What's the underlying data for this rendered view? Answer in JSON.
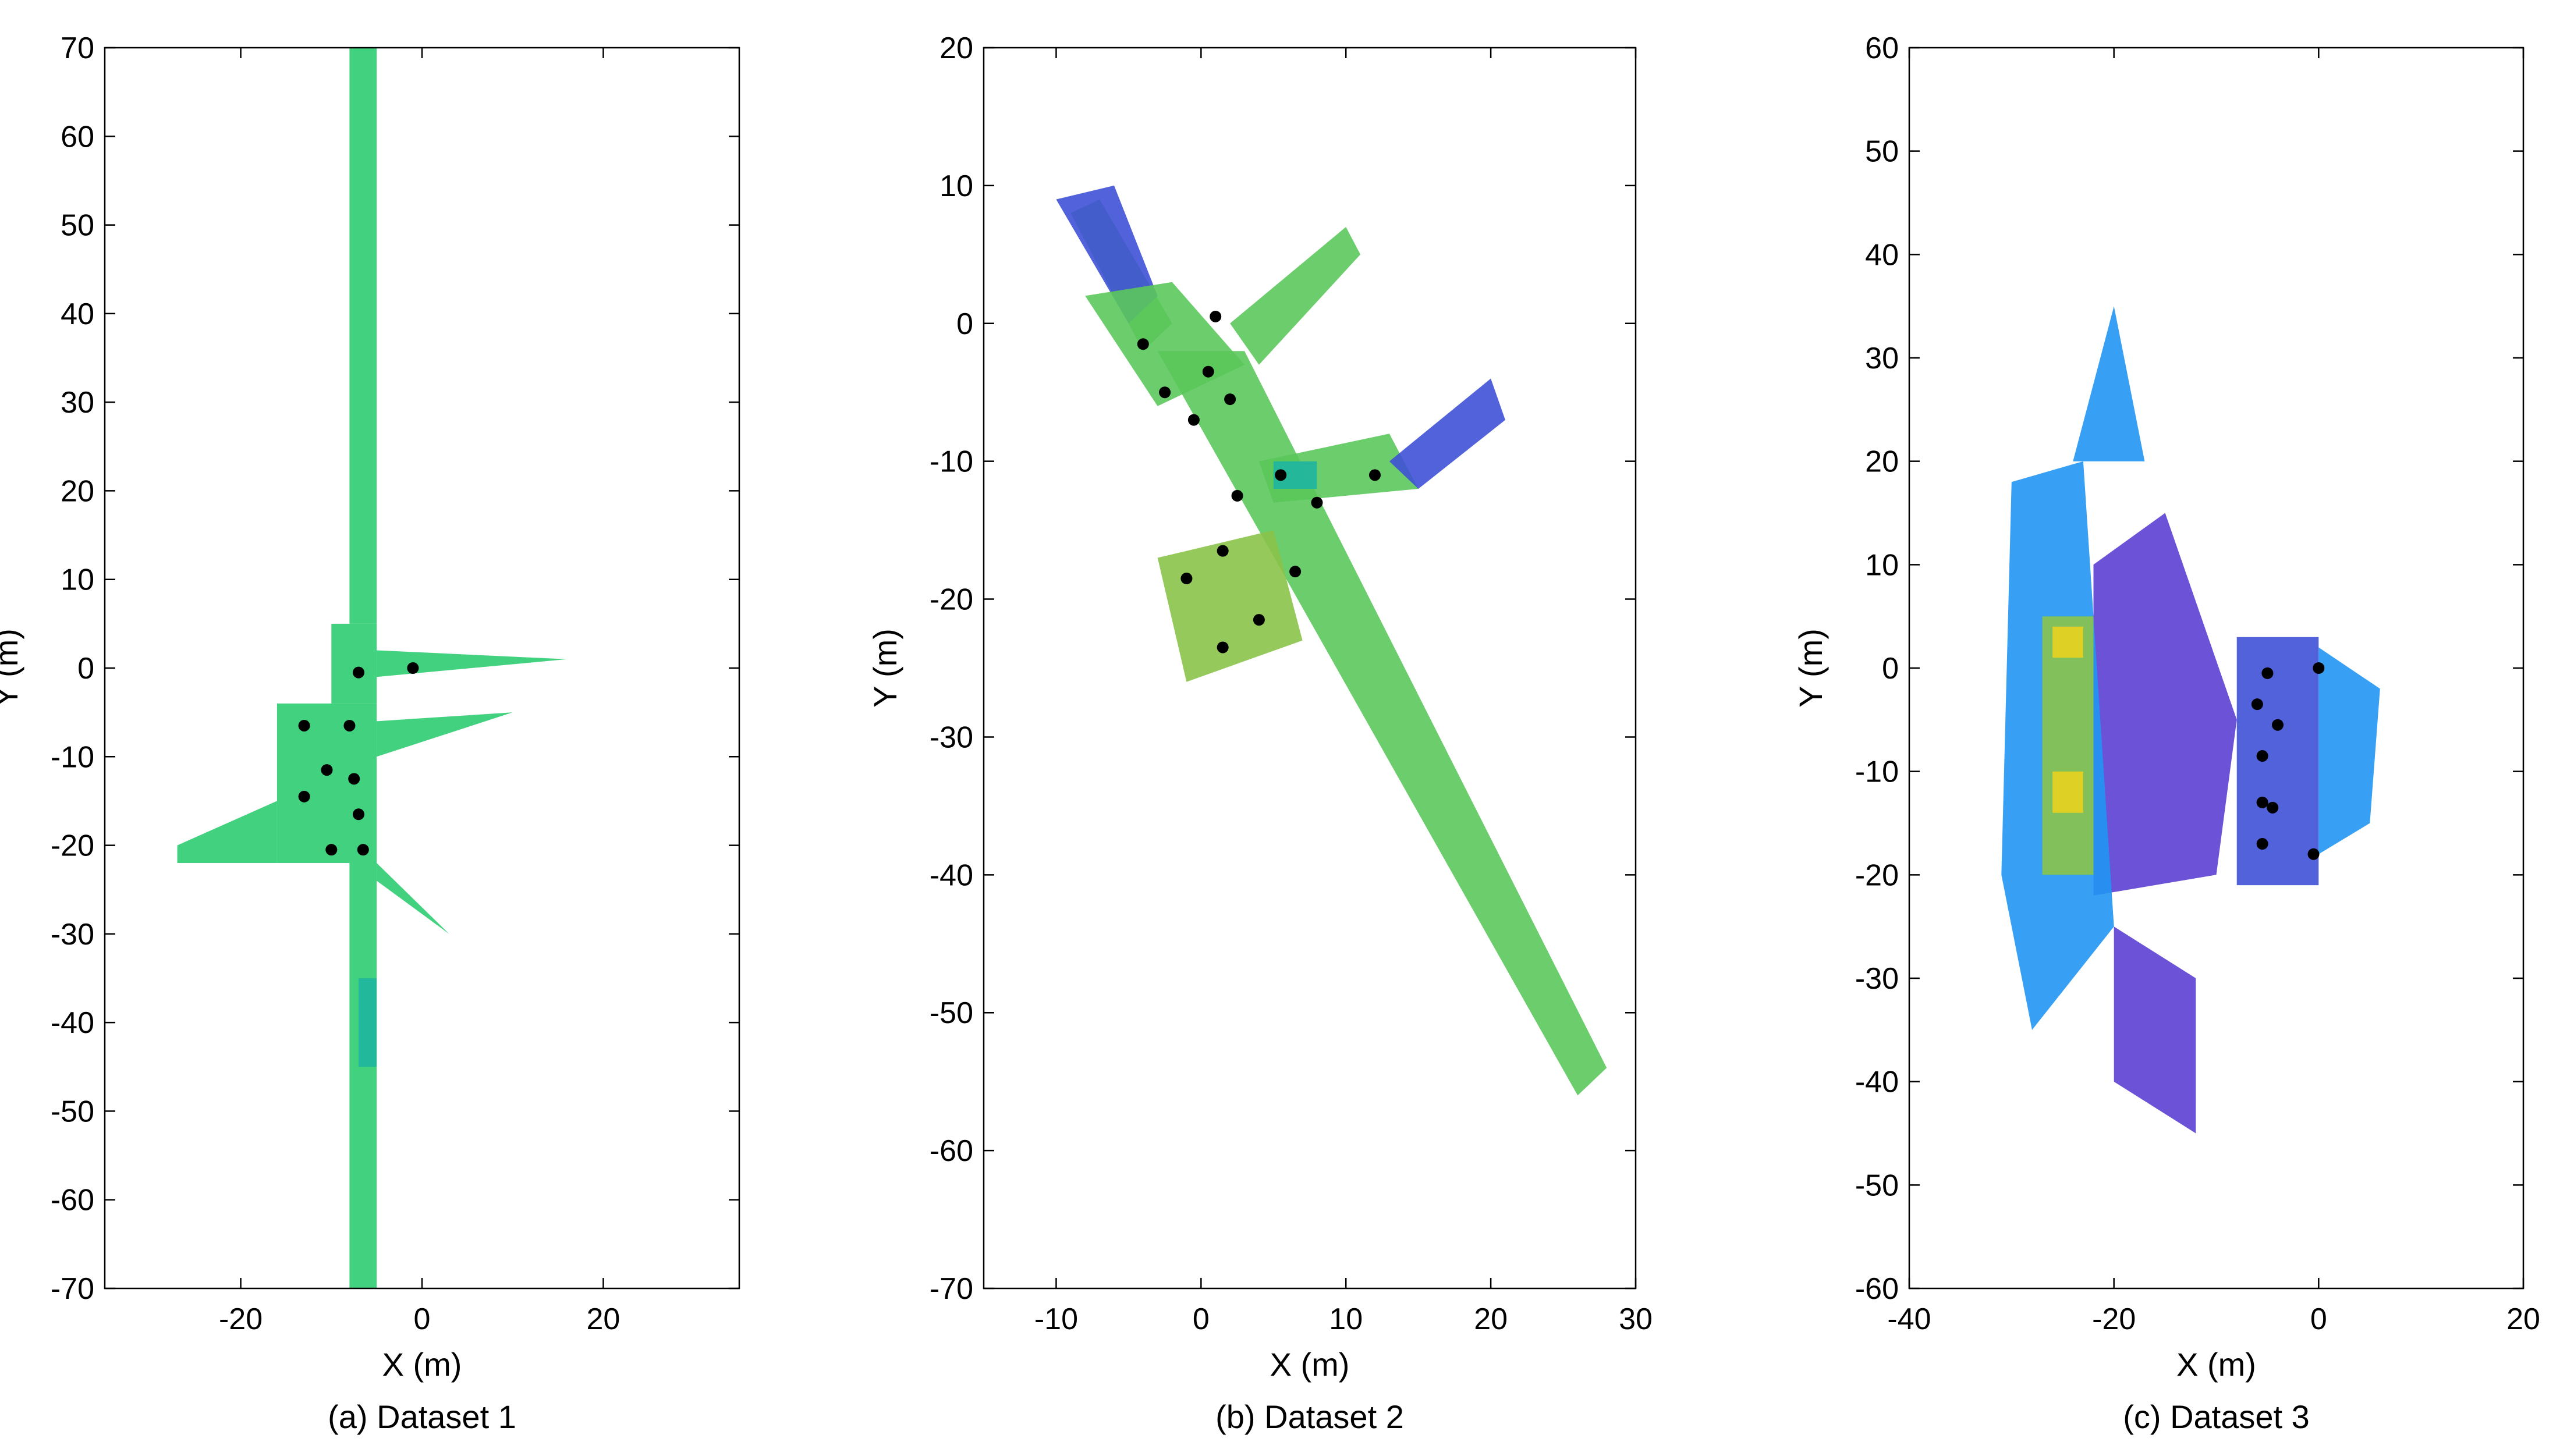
{
  "colors": {
    "green": "#2ecc71",
    "teal": "#1fb5a0",
    "lime": "#8bc34a",
    "yellow": "#e8d21f",
    "blue": "#3f51d6",
    "lightblue": "#2196f3",
    "violet": "#5b3fd1",
    "black": "#000000"
  },
  "chart_data": [
    {
      "type": "scatter",
      "caption": "(a) Dataset 1",
      "xlabel": "X (m)",
      "ylabel": "Y (m)",
      "xlim": [
        -35,
        35
      ],
      "ylim": [
        -70,
        70
      ],
      "xticks": [
        -20,
        0,
        20
      ],
      "yticks": [
        -70,
        -60,
        -50,
        -40,
        -30,
        -20,
        -10,
        0,
        10,
        20,
        30,
        40,
        50,
        60,
        70
      ],
      "grid": false,
      "series": [
        {
          "marker": "dot",
          "color": "#000000",
          "points": [
            [
              -7,
              -0.5
            ],
            [
              -1,
              0
            ],
            [
              -13,
              -6.5
            ],
            [
              -8,
              -6.5
            ],
            [
              -10.5,
              -11.5
            ],
            [
              -7.5,
              -12.5
            ],
            [
              -13,
              -14.5
            ],
            [
              -7,
              -16.5
            ],
            [
              -10,
              -20.5
            ],
            [
              -6.5,
              -20.5
            ]
          ]
        }
      ],
      "regions": [
        {
          "color": "#2ecc71",
          "polygon": [
            [
              -8,
              70
            ],
            [
              -5,
              70
            ],
            [
              -5,
              5
            ],
            [
              -8,
              5
            ]
          ]
        },
        {
          "color": "#2ecc71",
          "polygon": [
            [
              -16,
              -4
            ],
            [
              -5,
              -4
            ],
            [
              -5,
              -22
            ],
            [
              -16,
              -22
            ]
          ]
        },
        {
          "color": "#2ecc71",
          "polygon": [
            [
              -10,
              5
            ],
            [
              -5,
              5
            ],
            [
              -5,
              -4
            ],
            [
              -10,
              -4
            ]
          ]
        },
        {
          "color": "#2ecc71",
          "polygon": [
            [
              -5,
              2
            ],
            [
              16,
              1
            ],
            [
              -5,
              -1
            ]
          ]
        },
        {
          "color": "#2ecc71",
          "polygon": [
            [
              -27,
              -20
            ],
            [
              -16,
              -15
            ],
            [
              -16,
              -22
            ],
            [
              -27,
              -22
            ]
          ]
        },
        {
          "color": "#2ecc71",
          "polygon": [
            [
              -5,
              -6
            ],
            [
              10,
              -5
            ],
            [
              -5,
              -10
            ]
          ]
        },
        {
          "color": "#2ecc71",
          "polygon": [
            [
              -8,
              -22
            ],
            [
              -5,
              -22
            ],
            [
              -5,
              -70
            ],
            [
              -8,
              -70
            ]
          ]
        },
        {
          "color": "#1fb5a0",
          "polygon": [
            [
              -7,
              -35
            ],
            [
              -5,
              -35
            ],
            [
              -5,
              -45
            ],
            [
              -7,
              -45
            ]
          ]
        },
        {
          "color": "#2ecc71",
          "polygon": [
            [
              -5,
              -22
            ],
            [
              3,
              -30
            ],
            [
              -5,
              -24
            ]
          ]
        }
      ]
    },
    {
      "type": "scatter",
      "caption": "(b) Dataset 2",
      "xlabel": "X (m)",
      "ylabel": "Y (m)",
      "xlim": [
        -15,
        30
      ],
      "ylim": [
        -70,
        20
      ],
      "xticks": [
        -10,
        0,
        10,
        20,
        30
      ],
      "yticks": [
        -70,
        -60,
        -50,
        -40,
        -30,
        -20,
        -10,
        0,
        10,
        20
      ],
      "grid": false,
      "series": [
        {
          "marker": "dot",
          "color": "#000000",
          "points": [
            [
              -4,
              -1.5
            ],
            [
              1,
              0.5
            ],
            [
              0.5,
              -3.5
            ],
            [
              -2.5,
              -5
            ],
            [
              2,
              -5.5
            ],
            [
              -0.5,
              -7
            ],
            [
              5.5,
              -11
            ],
            [
              12,
              -11
            ],
            [
              2.5,
              -12.5
            ],
            [
              8,
              -13
            ],
            [
              1.5,
              -16.5
            ],
            [
              -1,
              -18.5
            ],
            [
              6.5,
              -18
            ],
            [
              4,
              -21.5
            ],
            [
              1.5,
              -23.5
            ]
          ]
        }
      ],
      "regions": [
        {
          "color": "#5bc85b",
          "polygon": [
            [
              -9,
              8
            ],
            [
              -7,
              9
            ],
            [
              -2,
              0
            ],
            [
              -4,
              -2
            ]
          ]
        },
        {
          "color": "#3f51d6",
          "polygon": [
            [
              -10,
              9
            ],
            [
              -6,
              10
            ],
            [
              -3,
              2
            ],
            [
              -5,
              0
            ]
          ]
        },
        {
          "color": "#5bc85b",
          "polygon": [
            [
              -8,
              2
            ],
            [
              -2,
              3
            ],
            [
              3,
              -3
            ],
            [
              -3,
              -6
            ]
          ]
        },
        {
          "color": "#5bc85b",
          "polygon": [
            [
              2,
              0
            ],
            [
              10,
              7
            ],
            [
              11,
              5
            ],
            [
              4,
              -3
            ]
          ]
        },
        {
          "color": "#5bc85b",
          "polygon": [
            [
              -3,
              -2
            ],
            [
              3,
              -2
            ],
            [
              28,
              -54
            ],
            [
              26,
              -56
            ]
          ]
        },
        {
          "color": "#8bc34a",
          "polygon": [
            [
              -3,
              -17
            ],
            [
              5,
              -15
            ],
            [
              7,
              -23
            ],
            [
              -1,
              -26
            ]
          ]
        },
        {
          "color": "#5bc85b",
          "polygon": [
            [
              4,
              -10
            ],
            [
              13,
              -8
            ],
            [
              15,
              -12
            ],
            [
              5,
              -13
            ]
          ]
        },
        {
          "color": "#3f51d6",
          "polygon": [
            [
              13,
              -10
            ],
            [
              20,
              -4
            ],
            [
              21,
              -7
            ],
            [
              15,
              -12
            ]
          ]
        },
        {
          "color": "#1fb5a0",
          "polygon": [
            [
              5,
              -10
            ],
            [
              8,
              -10
            ],
            [
              8,
              -12
            ],
            [
              5,
              -12
            ]
          ]
        }
      ]
    },
    {
      "type": "scatter",
      "caption": "(c) Dataset 3",
      "xlabel": "X (m)",
      "ylabel": "Y (m)",
      "xlim": [
        -40,
        20
      ],
      "ylim": [
        -60,
        60
      ],
      "xticks": [
        -40,
        -20,
        0,
        20
      ],
      "yticks": [
        -60,
        -50,
        -40,
        -30,
        -20,
        -10,
        0,
        10,
        20,
        30,
        40,
        50,
        60
      ],
      "grid": false,
      "series": [
        {
          "marker": "dot",
          "color": "#000000",
          "points": [
            [
              -5,
              -0.5
            ],
            [
              0,
              0
            ],
            [
              -6,
              -3.5
            ],
            [
              -4,
              -5.5
            ],
            [
              -5.5,
              -8.5
            ],
            [
              -4.5,
              -13.5
            ],
            [
              -5.5,
              -13
            ],
            [
              -5.5,
              -17
            ],
            [
              -0.5,
              -18
            ]
          ]
        }
      ],
      "regions": [
        {
          "color": "#3f51d6",
          "polygon": [
            [
              -8,
              3
            ],
            [
              0,
              3
            ],
            [
              0,
              -21
            ],
            [
              -8,
              -21
            ]
          ]
        },
        {
          "color": "#2196f3",
          "polygon": [
            [
              0,
              2
            ],
            [
              6,
              -2
            ],
            [
              5,
              -15
            ],
            [
              0,
              -18
            ]
          ]
        },
        {
          "color": "#5b3fd1",
          "polygon": [
            [
              -22,
              10
            ],
            [
              -15,
              15
            ],
            [
              -8,
              -5
            ],
            [
              -10,
              -20
            ],
            [
              -22,
              -22
            ]
          ]
        },
        {
          "color": "#2196f3",
          "polygon": [
            [
              -30,
              18
            ],
            [
              -23,
              20
            ],
            [
              -20,
              -25
            ],
            [
              -28,
              -35
            ],
            [
              -31,
              -20
            ]
          ]
        },
        {
          "color": "#8bc34a",
          "polygon": [
            [
              -27,
              5
            ],
            [
              -22,
              5
            ],
            [
              -22,
              -20
            ],
            [
              -27,
              -20
            ]
          ]
        },
        {
          "color": "#e8d21f",
          "polygon": [
            [
              -26,
              -10
            ],
            [
              -23,
              -10
            ],
            [
              -23,
              -14
            ],
            [
              -26,
              -14
            ]
          ]
        },
        {
          "color": "#e8d21f",
          "polygon": [
            [
              -26,
              4
            ],
            [
              -23,
              4
            ],
            [
              -23,
              1
            ],
            [
              -26,
              1
            ]
          ]
        },
        {
          "color": "#5b3fd1",
          "polygon": [
            [
              -20,
              -25
            ],
            [
              -12,
              -30
            ],
            [
              -12,
              -45
            ],
            [
              -20,
              -40
            ]
          ]
        },
        {
          "color": "#2196f3",
          "polygon": [
            [
              -24,
              20
            ],
            [
              -20,
              35
            ],
            [
              -17,
              20
            ]
          ]
        }
      ]
    }
  ]
}
